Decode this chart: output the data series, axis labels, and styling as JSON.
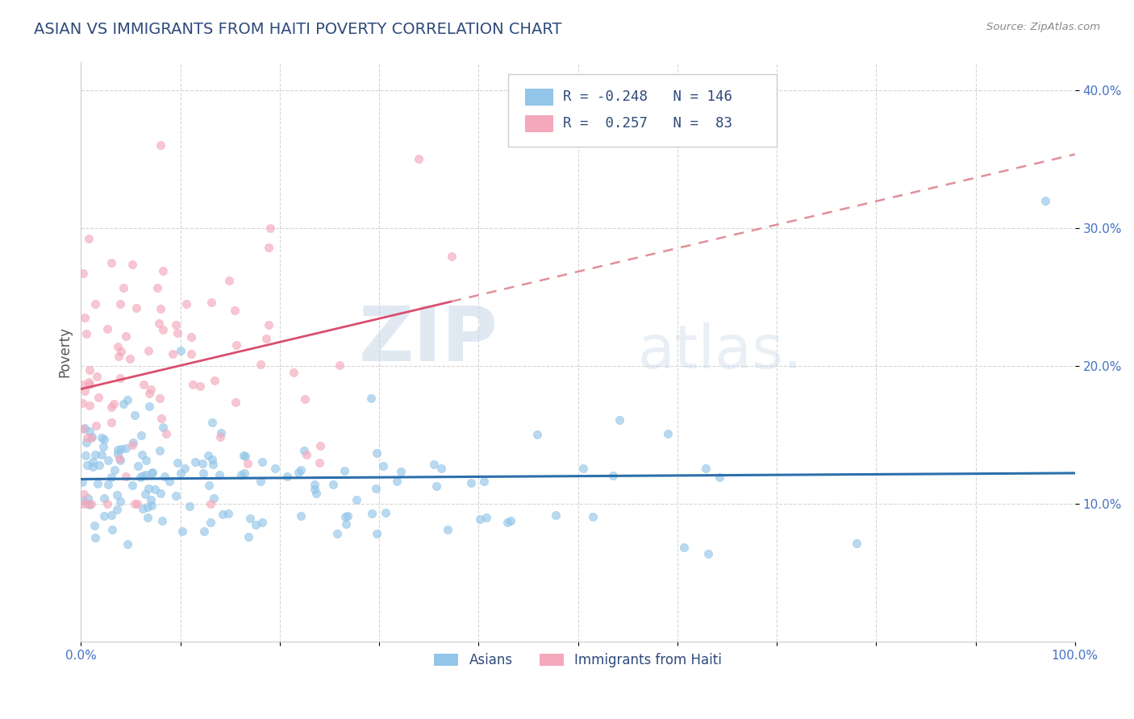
{
  "title": "ASIAN VS IMMIGRANTS FROM HAITI POVERTY CORRELATION CHART",
  "source_text": "Source: ZipAtlas.com",
  "ylabel": "Poverty",
  "xlim": [
    0.0,
    1.0
  ],
  "ylim": [
    0.0,
    0.42
  ],
  "xtick_labels": [
    "0.0%",
    "",
    "",
    "",
    "",
    "",
    "",
    "",
    "",
    "",
    "100.0%"
  ],
  "xtick_positions": [
    0.0,
    0.1,
    0.2,
    0.3,
    0.4,
    0.5,
    0.6,
    0.7,
    0.8,
    0.9,
    1.0
  ],
  "ytick_labels": [
    "10.0%",
    "20.0%",
    "30.0%",
    "40.0%"
  ],
  "ytick_positions": [
    0.1,
    0.2,
    0.3,
    0.4
  ],
  "title_color": "#2E4A7A",
  "title_fontsize": 14,
  "asian_color": "#92C5E8",
  "haiti_color": "#F4A8BC",
  "asian_line_color": "#2C6FAC",
  "haiti_line_color": "#D94F6F",
  "haiti_line_dashed_color": "#E0909A",
  "R_asian": -0.248,
  "N_asian": 146,
  "R_haiti": 0.257,
  "N_haiti": 83,
  "watermark_zip": "ZIP",
  "watermark_atlas": "atlas.",
  "background_color": "#FFFFFF",
  "grid_color": "#CCCCCC",
  "legend_label_asian": "Asians",
  "legend_label_haiti": "Immigrants from Haiti",
  "tick_color": "#4472C4",
  "source_color": "#888888"
}
